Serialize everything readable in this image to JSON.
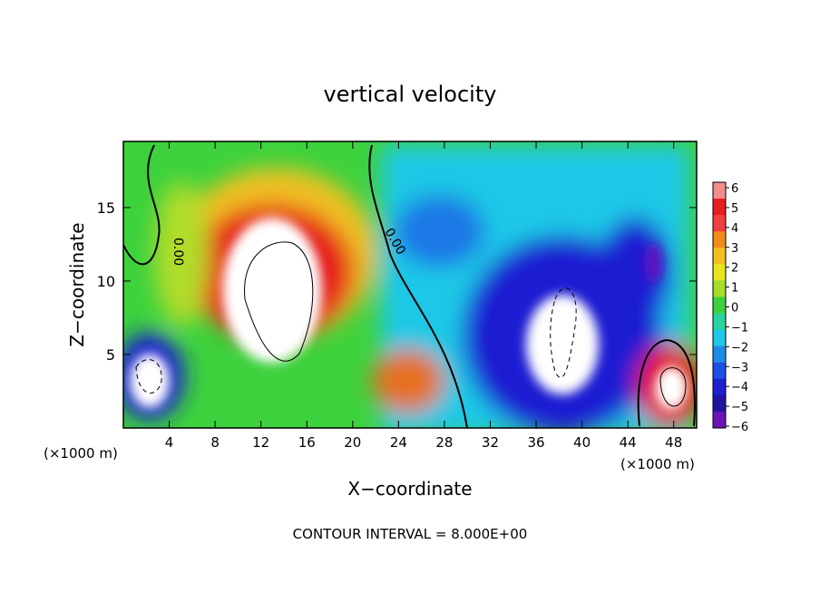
{
  "chart_data": {
    "type": "heatmap",
    "title": "vertical velocity",
    "xlabel": "X−coordinate",
    "ylabel": "Z−coordinate",
    "x_unit_label": "(×1000 m)",
    "z_unit_label": "(×1000 m)",
    "footer": "CONTOUR INTERVAL = 8.000E+00",
    "xlim": [
      0,
      50
    ],
    "ylim": [
      0,
      19.5
    ],
    "x_ticks": [
      "4",
      "8",
      "12",
      "16",
      "20",
      "24",
      "28",
      "32",
      "36",
      "40",
      "44",
      "48"
    ],
    "y_ticks": [
      "5",
      "10",
      "15"
    ],
    "colorbar": {
      "ticks": [
        "6",
        "5",
        "4",
        "3",
        "2",
        "1",
        "0",
        "−1",
        "−2",
        "−3",
        "−4",
        "−5",
        "−6"
      ],
      "range": [
        -6,
        6
      ]
    },
    "contour_labels": [
      "0.00",
      "0.00"
    ],
    "features": [
      {
        "name": "updraft core",
        "x": 13.5,
        "z": 9,
        "value": 8
      },
      {
        "name": "updraft arch",
        "x": 14.5,
        "z": 12,
        "value": 5
      },
      {
        "name": "downdraft west",
        "x": 2.2,
        "z": 3.8,
        "value": -8
      },
      {
        "name": "downdraft central",
        "x": 38,
        "z": 6,
        "value": -8
      },
      {
        "name": "updraft east",
        "x": 47.2,
        "z": 2.8,
        "value": 8
      }
    ]
  }
}
